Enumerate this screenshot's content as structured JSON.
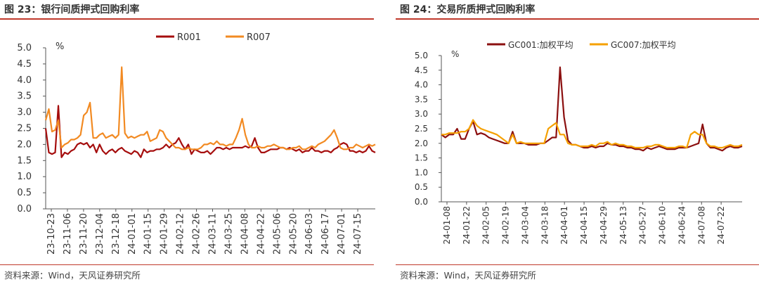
{
  "figures": [
    {
      "title": "图 23：银行间质押式回购利率",
      "source": "资料来源：Wind，天风证券研究所"
    },
    {
      "title": "图 24：交易所质押式回购利率",
      "source": "资料来源：Wind，天风证券研究所"
    }
  ],
  "colors": {
    "rule": "#c0392b",
    "dark_red": "#a50d0d",
    "orange": "#f28a22",
    "gold": "#f5a000"
  },
  "chart_data": [
    {
      "type": "line",
      "ylabel": "%",
      "ylim": [
        0,
        5
      ],
      "yticks": [
        "0.0",
        "0.5",
        "1.0",
        "1.5",
        "2.0",
        "2.5",
        "3.0",
        "3.5",
        "4.0",
        "4.5",
        "5.0"
      ],
      "x_tick_labels": [
        "23-10-23",
        "23-11-06",
        "23-11-20",
        "23-12-04",
        "23-12-18",
        "24-01-01",
        "24-01-15",
        "24-01-29",
        "24-02-12",
        "24-02-26",
        "24-03-11",
        "24-03-25",
        "24-04-08",
        "24-04-22",
        "24-05-06",
        "24-05-20",
        "24-06-03",
        "24-06-17",
        "24-07-01",
        "24-07-15"
      ],
      "legend": "top-center",
      "grid": false,
      "series": [
        {
          "name": "R001",
          "values": [
            2.5,
            1.75,
            1.7,
            1.75,
            3.2,
            1.6,
            1.75,
            1.7,
            1.8,
            1.85,
            2.0,
            2.05,
            2.0,
            2.05,
            1.9,
            2.0,
            1.75,
            2.0,
            1.8,
            1.7,
            1.8,
            1.85,
            1.75,
            1.85,
            1.9,
            1.8,
            1.75,
            1.7,
            1.8,
            1.75,
            1.6,
            1.85,
            1.75,
            1.8,
            1.8,
            1.85,
            1.85,
            1.9,
            2.0,
            1.9,
            2.0,
            2.05,
            2.2,
            2.0,
            1.85,
            2.0,
            1.7,
            1.85,
            1.8,
            1.75,
            1.75,
            1.8,
            1.7,
            1.8,
            1.9,
            1.9,
            1.85,
            1.9,
            1.85,
            1.9,
            1.9,
            1.9,
            1.9,
            1.95,
            1.9,
            1.95,
            2.2,
            1.9,
            1.75,
            1.75,
            1.8,
            1.85,
            1.85,
            1.85,
            1.9,
            1.9,
            1.85,
            1.9,
            1.85,
            1.8,
            1.85,
            1.75,
            1.8,
            1.8,
            1.9,
            1.8,
            1.8,
            1.75,
            1.8,
            1.8,
            1.75,
            1.85,
            1.9,
            2.0,
            2.05,
            2.0,
            1.8,
            1.8,
            1.75,
            1.8,
            1.75,
            1.8,
            1.95,
            1.8,
            1.75
          ]
        },
        {
          "name": "R007",
          "values": [
            2.75,
            3.1,
            2.4,
            2.45,
            2.75,
            1.9,
            2.0,
            2.05,
            2.15,
            2.15,
            2.2,
            2.3,
            2.9,
            3.0,
            3.3,
            2.2,
            2.2,
            2.3,
            2.35,
            2.2,
            2.25,
            2.3,
            2.2,
            2.3,
            4.4,
            2.35,
            2.2,
            2.25,
            2.2,
            2.25,
            2.3,
            2.3,
            2.4,
            2.1,
            2.15,
            2.2,
            2.45,
            2.4,
            2.2,
            2.1,
            2.0,
            1.9,
            1.9,
            1.85,
            1.85,
            1.9,
            1.85,
            1.85,
            1.85,
            1.9,
            2.0,
            2.0,
            2.05,
            2.0,
            2.1,
            2.0,
            2.0,
            1.95,
            2.0,
            2.0,
            2.2,
            2.45,
            2.8,
            2.3,
            2.0,
            1.9,
            1.9,
            1.95,
            1.9,
            1.9,
            1.95,
            1.95,
            2.0,
            1.95,
            1.9,
            1.9,
            1.85,
            1.85,
            1.9,
            1.9,
            1.95,
            1.85,
            1.85,
            1.9,
            1.95,
            1.9,
            2.0,
            2.05,
            2.1,
            2.2,
            2.3,
            2.45,
            2.2,
            1.9,
            1.85,
            1.85,
            1.9,
            1.9,
            2.0,
            1.95,
            1.9,
            1.95,
            2.0,
            1.95,
            2.0
          ]
        }
      ]
    },
    {
      "type": "line",
      "ylabel": "%",
      "ylim": [
        0,
        5
      ],
      "yticks": [
        "0.0",
        "0.5",
        "1.0",
        "1.5",
        "2.0",
        "2.5",
        "3.0",
        "3.5",
        "4.0",
        "4.5",
        "5.0"
      ],
      "x_tick_labels": [
        "24-01-08",
        "24-01-22",
        "24-02-05",
        "24-02-19",
        "24-03-04",
        "24-03-18",
        "24-04-01",
        "24-04-15",
        "24-04-29",
        "24-05-13",
        "24-05-27",
        "24-06-10",
        "24-06-24",
        "24-07-08",
        "24-07-22"
      ],
      "legend": "top-center",
      "grid": false,
      "series": [
        {
          "name": "GC001:加权平均",
          "values": [
            2.3,
            2.2,
            2.3,
            2.3,
            2.5,
            2.15,
            2.15,
            2.5,
            2.75,
            2.3,
            2.35,
            2.3,
            2.2,
            2.15,
            2.1,
            2.05,
            2.0,
            2.0,
            2.4,
            2.0,
            2.0,
            2.0,
            1.95,
            1.95,
            1.95,
            2.0,
            2.0,
            2.1,
            2.2,
            2.2,
            4.6,
            2.9,
            2.1,
            1.95,
            1.95,
            1.9,
            1.85,
            1.85,
            1.9,
            1.85,
            1.9,
            1.9,
            2.0,
            1.95,
            1.95,
            1.9,
            1.9,
            1.85,
            1.85,
            1.8,
            1.8,
            1.75,
            1.85,
            1.8,
            1.85,
            1.9,
            1.85,
            1.8,
            1.8,
            1.8,
            1.85,
            1.85,
            1.85,
            1.9,
            1.95,
            2.0,
            2.65,
            2.0,
            1.85,
            1.85,
            1.8,
            1.75,
            1.85,
            1.9,
            1.85,
            1.85,
            1.9
          ]
        },
        {
          "name": "GC007:加权平均",
          "values": [
            2.3,
            2.3,
            2.35,
            2.35,
            2.35,
            2.4,
            2.4,
            2.5,
            2.8,
            2.6,
            2.5,
            2.45,
            2.4,
            2.35,
            2.3,
            2.2,
            2.1,
            2.0,
            2.3,
            2.0,
            2.05,
            2.0,
            2.0,
            2.0,
            2.0,
            2.0,
            2.0,
            2.5,
            2.6,
            2.7,
            2.3,
            2.3,
            2.0,
            1.95,
            1.95,
            1.9,
            1.9,
            1.9,
            1.95,
            1.9,
            2.0,
            2.0,
            2.05,
            1.95,
            2.0,
            1.95,
            1.95,
            1.9,
            1.9,
            1.85,
            1.85,
            1.85,
            1.9,
            1.9,
            1.95,
            1.95,
            1.9,
            1.85,
            1.85,
            1.85,
            1.9,
            1.9,
            1.85,
            2.3,
            2.4,
            2.3,
            2.3,
            2.0,
            1.9,
            1.9,
            1.85,
            1.85,
            1.9,
            1.95,
            1.9,
            1.9,
            1.95
          ]
        }
      ]
    }
  ]
}
